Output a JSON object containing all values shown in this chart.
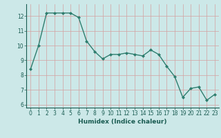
{
  "x": [
    0,
    1,
    2,
    3,
    4,
    5,
    6,
    7,
    8,
    9,
    10,
    11,
    12,
    13,
    14,
    15,
    16,
    17,
    18,
    19,
    20,
    21,
    22,
    23
  ],
  "y": [
    8.4,
    10.0,
    12.2,
    12.2,
    12.2,
    12.2,
    11.9,
    10.3,
    9.6,
    9.1,
    9.4,
    9.4,
    9.5,
    9.4,
    9.3,
    9.7,
    9.4,
    8.6,
    7.9,
    6.5,
    7.1,
    7.2,
    6.3,
    6.7
  ],
  "line_color": "#2e7d6e",
  "marker": "D",
  "marker_size": 2,
  "xlabel": "Humidex (Indice chaleur)",
  "xlim": [
    -0.5,
    23.5
  ],
  "ylim": [
    5.8,
    12.8
  ],
  "yticks": [
    6,
    7,
    8,
    9,
    10,
    11,
    12
  ],
  "xticks": [
    0,
    1,
    2,
    3,
    4,
    5,
    6,
    7,
    8,
    9,
    10,
    11,
    12,
    13,
    14,
    15,
    16,
    17,
    18,
    19,
    20,
    21,
    22,
    23
  ],
  "bg_color": "#cce8e8",
  "grid_color_v": "#d4a0a0",
  "grid_color_h": "#d4a0a0",
  "tick_color": "#1a5c52",
  "axis_color": "#1a5c52",
  "label_fontsize": 6.5,
  "tick_fontsize": 5.5,
  "linewidth": 1.0
}
